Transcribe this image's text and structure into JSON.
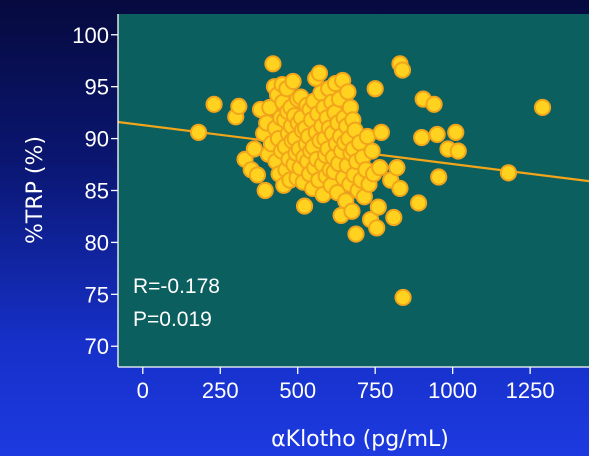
{
  "chart_data": {
    "type": "scatter",
    "xlabel": "αKlotho (pg/mL)",
    "ylabel": "%TRP (%)",
    "xlim": [
      -80,
      1440
    ],
    "ylim": [
      68,
      102
    ],
    "x_ticks": [
      "0",
      "250",
      "500",
      "750",
      "1000",
      "1250"
    ],
    "y_ticks": [
      "100",
      "95",
      "90",
      "85",
      "80",
      "75",
      "70"
    ],
    "grid": false,
    "plot_background": "#0b5f5e",
    "marker_color": "#ffd21f",
    "marker_edge_color": "#f2a51a",
    "trendline_color": "#f2a51a",
    "annotations": [
      "R=-0.178",
      "P=0.019"
    ],
    "trendline": {
      "x": [
        -80,
        1440
      ],
      "y": [
        91.6,
        85.9
      ]
    },
    "points": [
      [
        180,
        90.6
      ],
      [
        230,
        93.3
      ],
      [
        300,
        92.1
      ],
      [
        310,
        93.1
      ],
      [
        330,
        88.0
      ],
      [
        350,
        87.0
      ],
      [
        360,
        89.0
      ],
      [
        370,
        86.5
      ],
      [
        380,
        92.8
      ],
      [
        390,
        90.5
      ],
      [
        395,
        85.0
      ],
      [
        400,
        91.5
      ],
      [
        405,
        88.5
      ],
      [
        410,
        93.0
      ],
      [
        415,
        89.5
      ],
      [
        420,
        97.2
      ],
      [
        425,
        95.0
      ],
      [
        428,
        91.0
      ],
      [
        430,
        87.8
      ],
      [
        435,
        94.2
      ],
      [
        438,
        90.0
      ],
      [
        440,
        86.6
      ],
      [
        445,
        92.0
      ],
      [
        448,
        88.8
      ],
      [
        450,
        95.2
      ],
      [
        452,
        93.5
      ],
      [
        455,
        85.5
      ],
      [
        458,
        91.8
      ],
      [
        460,
        89.2
      ],
      [
        462,
        87.0
      ],
      [
        465,
        94.8
      ],
      [
        468,
        92.6
      ],
      [
        470,
        90.5
      ],
      [
        472,
        88.0
      ],
      [
        475,
        86.0
      ],
      [
        478,
        93.0
      ],
      [
        480,
        91.2
      ],
      [
        482,
        89.8
      ],
      [
        485,
        95.5
      ],
      [
        488,
        87.5
      ],
      [
        490,
        92.2
      ],
      [
        492,
        90.0
      ],
      [
        495,
        88.6
      ],
      [
        498,
        86.2
      ],
      [
        500,
        93.8
      ],
      [
        502,
        91.5
      ],
      [
        505,
        89.0
      ],
      [
        508,
        87.2
      ],
      [
        510,
        94.0
      ],
      [
        512,
        92.0
      ],
      [
        515,
        90.8
      ],
      [
        518,
        85.8
      ],
      [
        520,
        88.2
      ],
      [
        522,
        83.5
      ],
      [
        525,
        91.0
      ],
      [
        528,
        89.5
      ],
      [
        530,
        93.2
      ],
      [
        532,
        87.8
      ],
      [
        535,
        90.2
      ],
      [
        538,
        86.6
      ],
      [
        540,
        92.8
      ],
      [
        542,
        88.8
      ],
      [
        545,
        91.8
      ],
      [
        548,
        85.2
      ],
      [
        550,
        89.2
      ],
      [
        552,
        93.6
      ],
      [
        555,
        87.2
      ],
      [
        558,
        95.8
      ],
      [
        560,
        90.6
      ],
      [
        562,
        88.0
      ],
      [
        565,
        92.4
      ],
      [
        568,
        86.0
      ],
      [
        570,
        96.3
      ],
      [
        572,
        89.8
      ],
      [
        575,
        94.4
      ],
      [
        578,
        91.2
      ],
      [
        580,
        87.5
      ],
      [
        582,
        84.6
      ],
      [
        585,
        93.0
      ],
      [
        588,
        90.0
      ],
      [
        590,
        88.4
      ],
      [
        592,
        86.4
      ],
      [
        595,
        92.0
      ],
      [
        598,
        89.0
      ],
      [
        600,
        94.8
      ],
      [
        602,
        91.0
      ],
      [
        605,
        87.0
      ],
      [
        608,
        85.5
      ],
      [
        610,
        93.5
      ],
      [
        612,
        90.5
      ],
      [
        615,
        88.2
      ],
      [
        618,
        86.8
      ],
      [
        620,
        92.5
      ],
      [
        622,
        95.3
      ],
      [
        625,
        89.5
      ],
      [
        628,
        84.8
      ],
      [
        630,
        91.5
      ],
      [
        632,
        87.6
      ],
      [
        635,
        93.8
      ],
      [
        638,
        90.2
      ],
      [
        640,
        82.6
      ],
      [
        642,
        88.8
      ],
      [
        645,
        95.6
      ],
      [
        648,
        86.2
      ],
      [
        650,
        92.0
      ],
      [
        652,
        89.6
      ],
      [
        655,
        84.0
      ],
      [
        658,
        91.2
      ],
      [
        660,
        87.4
      ],
      [
        662,
        94.5
      ],
      [
        665,
        90.0
      ],
      [
        668,
        85.6
      ],
      [
        670,
        93.0
      ],
      [
        672,
        88.6
      ],
      [
        675,
        83.0
      ],
      [
        678,
        91.8
      ],
      [
        680,
        89.0
      ],
      [
        682,
        86.5
      ],
      [
        685,
        90.8
      ],
      [
        688,
        80.8
      ],
      [
        690,
        87.8
      ],
      [
        695,
        85.0
      ],
      [
        700,
        89.6
      ],
      [
        705,
        86.0
      ],
      [
        710,
        88.2
      ],
      [
        715,
        84.4
      ],
      [
        720,
        87.0
      ],
      [
        725,
        90.2
      ],
      [
        730,
        85.6
      ],
      [
        735,
        82.2
      ],
      [
        740,
        88.8
      ],
      [
        745,
        86.6
      ],
      [
        750,
        94.8
      ],
      [
        755,
        81.4
      ],
      [
        760,
        83.4
      ],
      [
        765,
        87.2
      ],
      [
        770,
        90.6
      ],
      [
        800,
        86.0
      ],
      [
        810,
        82.4
      ],
      [
        820,
        87.2
      ],
      [
        830,
        85.2
      ],
      [
        830,
        97.2
      ],
      [
        838,
        96.6
      ],
      [
        840,
        74.7
      ],
      [
        890,
        83.8
      ],
      [
        900,
        90.1
      ],
      [
        905,
        93.8
      ],
      [
        940,
        93.3
      ],
      [
        950,
        90.4
      ],
      [
        955,
        86.3
      ],
      [
        985,
        89.0
      ],
      [
        1010,
        90.6
      ],
      [
        1018,
        88.8
      ],
      [
        1180,
        86.7
      ],
      [
        1290,
        93.0
      ]
    ]
  }
}
